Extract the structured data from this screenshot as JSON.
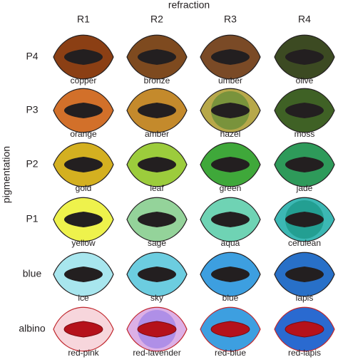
{
  "title": "refraction",
  "y_label": "pigmentation",
  "columns": [
    "R1",
    "R2",
    "R3",
    "R4"
  ],
  "rows": [
    {
      "label": "P4",
      "pupil": "#231f20",
      "outline": "#231f20",
      "cells": [
        {
          "label": "copper",
          "color": "#8b3f14"
        },
        {
          "label": "bronze",
          "color": "#7e4a1f"
        },
        {
          "label": "umber",
          "color": "#7a4a26"
        },
        {
          "label": "olive",
          "color": "#3c4a22"
        }
      ]
    },
    {
      "label": "P3",
      "pupil": "#231f20",
      "outline": "#231f20",
      "cells": [
        {
          "label": "orange",
          "color": "#d2702a"
        },
        {
          "label": "amber",
          "color": "#c48a2c"
        },
        {
          "label": "hazel",
          "color": "#b7a84a",
          "inner": "#6f8f3a"
        },
        {
          "label": "moss",
          "color": "#3f6125"
        }
      ]
    },
    {
      "label": "P2",
      "pupil": "#231f20",
      "outline": "#231f20",
      "cells": [
        {
          "label": "gold",
          "color": "#d4b020"
        },
        {
          "label": "leaf",
          "color": "#9ccc3c"
        },
        {
          "label": "green",
          "color": "#3fa83a"
        },
        {
          "label": "jade",
          "color": "#2e9a5a"
        }
      ]
    },
    {
      "label": "P1",
      "pupil": "#231f20",
      "outline": "#231f20",
      "cells": [
        {
          "label": "yellow",
          "color": "#eef24c"
        },
        {
          "label": "sage",
          "color": "#94d39a"
        },
        {
          "label": "aqua",
          "color": "#6fd3b4"
        },
        {
          "label": "cerulean",
          "color": "#3cb8b4",
          "inner": "#1e9a8c"
        }
      ]
    },
    {
      "label": "blue",
      "pupil": "#231f20",
      "outline": "#231f20",
      "cells": [
        {
          "label": "ice",
          "color": "#a8e6ee"
        },
        {
          "label": "sky",
          "color": "#6ccde0"
        },
        {
          "label": "blue",
          "color": "#3d9fe0"
        },
        {
          "label": "lapis",
          "color": "#2870c8"
        }
      ]
    },
    {
      "label": "albino",
      "pupil": "#b5121b",
      "outline": "#c0272d",
      "cells": [
        {
          "label": "red-pink",
          "color": "#f7d6dc"
        },
        {
          "label": "red-lavender",
          "color": "#dcb0e6",
          "inner": "#a78ae6"
        },
        {
          "label": "red-blue",
          "color": "#3d9fe0"
        },
        {
          "label": "red-lapis",
          "color": "#2a6ad0"
        }
      ]
    }
  ]
}
